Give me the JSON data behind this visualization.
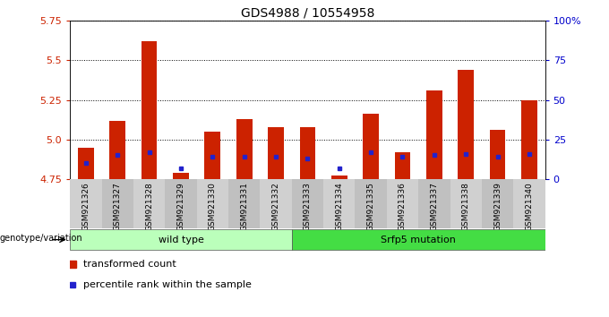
{
  "title": "GDS4988 / 10554958",
  "samples": [
    "GSM921326",
    "GSM921327",
    "GSM921328",
    "GSM921329",
    "GSM921330",
    "GSM921331",
    "GSM921332",
    "GSM921333",
    "GSM921334",
    "GSM921335",
    "GSM921336",
    "GSM921337",
    "GSM921338",
    "GSM921339",
    "GSM921340"
  ],
  "transformed_count": [
    4.95,
    5.12,
    5.62,
    4.79,
    5.05,
    5.13,
    5.08,
    5.08,
    4.77,
    5.16,
    4.92,
    5.31,
    5.44,
    5.06,
    5.25
  ],
  "percentile_rank": [
    10,
    15,
    17,
    7,
    14,
    14,
    14,
    13,
    7,
    17,
    14,
    15,
    16,
    14,
    16
  ],
  "ymin": 4.75,
  "ymax": 5.75,
  "yticks": [
    4.75,
    5.0,
    5.25,
    5.5,
    5.75
  ],
  "right_yticks": [
    0,
    25,
    50,
    75,
    100
  ],
  "right_ytick_labels": [
    "0",
    "25",
    "50",
    "75",
    "100%"
  ],
  "groups": [
    {
      "label": "wild type",
      "start": 0,
      "end": 7,
      "color": "#bbffbb"
    },
    {
      "label": "Srfp5 mutation",
      "start": 7,
      "end": 15,
      "color": "#44dd44"
    }
  ],
  "bar_color_red": "#cc2200",
  "bar_color_blue": "#2222cc",
  "tick_label_color": "#cc2200",
  "right_tick_color": "#0000cc",
  "legend_red_label": "transformed count",
  "legend_blue_label": "percentile rank within the sample",
  "genotype_label": "genotype/variation",
  "bar_width": 0.5,
  "xtick_bg": "#c8c8c8"
}
